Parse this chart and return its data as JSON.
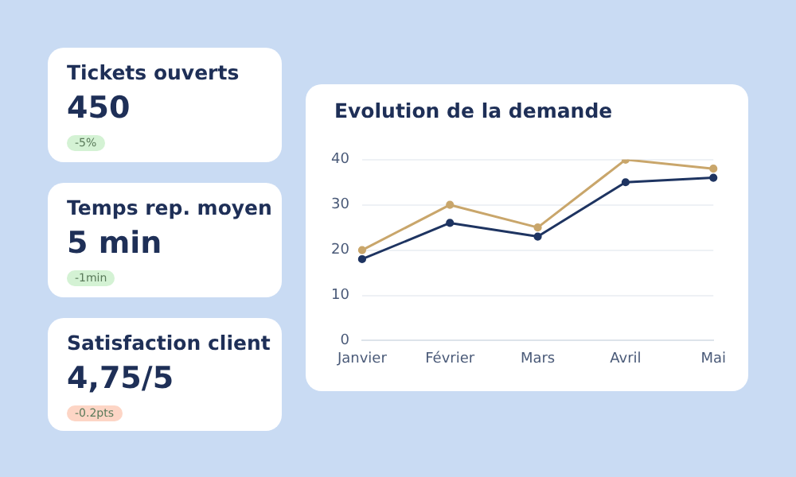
{
  "chart_data": [
    {
      "type": "other",
      "title": "Tickets ouverts",
      "annotations": [
        "450",
        "-5%"
      ],
      "color": "#d4f2d4"
    },
    {
      "type": "other",
      "title": "Temps rep. moyen",
      "annotations": [
        "5 min",
        "-1min"
      ],
      "color": "#d4f2d4"
    },
    {
      "type": "other",
      "title": "Satisfaction client",
      "annotations": [
        "4,75/5",
        "-0.2pts"
      ],
      "color": "#fdd5c5"
    },
    {
      "type": "line",
      "title": "Evolution de la demande",
      "categories": [
        "Janvier",
        "Février",
        "Mars",
        "Avril",
        "Mai"
      ],
      "series": [
        {
          "color": "#c9a66b",
          "values": [
            20,
            30,
            25,
            40,
            38
          ]
        },
        {
          "color": "#1e3461",
          "values": [
            18,
            26,
            23,
            35,
            36
          ]
        }
      ],
      "ylim": [
        0,
        40
      ],
      "yticks": [
        0,
        10,
        20,
        30,
        40
      ],
      "grid": "y",
      "marker": "circle",
      "legend": false
    }
  ]
}
